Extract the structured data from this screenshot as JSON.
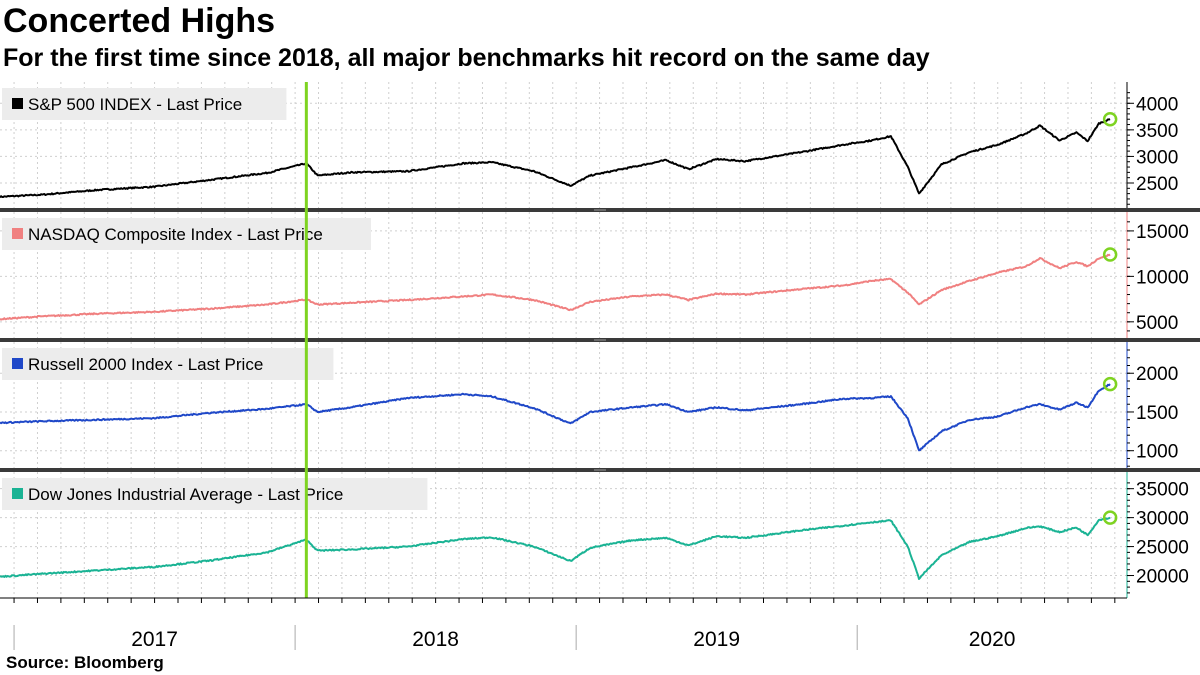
{
  "title": "Concerted Highs",
  "subtitle": "For the first time since 2018, all major benchmarks hit record on the same day",
  "source": "Source: Bloomberg",
  "chart_data": {
    "type": "line",
    "x_range": [
      2016.95,
      2020.96
    ],
    "x_tick_labels": [
      "2017",
      "2018",
      "2019",
      "2020"
    ],
    "highlight_line_x": 2018.04,
    "highlight_color": "#7ed321",
    "series": [
      {
        "name": "S&P 500 INDEX - Last Price",
        "color": "#000000",
        "ylim": [
          2180,
          4250
        ],
        "yticks": [
          2500,
          3000,
          3500,
          4000
        ],
        "x": [
          2016.95,
          2017.1,
          2017.3,
          2017.5,
          2017.7,
          2017.9,
          2018.04,
          2018.08,
          2018.2,
          2018.4,
          2018.6,
          2018.7,
          2018.85,
          2018.98,
          2019.05,
          2019.2,
          2019.32,
          2019.4,
          2019.5,
          2019.6,
          2019.8,
          2019.95,
          2020.05,
          2020.12,
          2020.18,
          2020.22,
          2020.3,
          2020.4,
          2020.5,
          2020.6,
          2020.65,
          2020.72,
          2020.78,
          2020.82,
          2020.86,
          2020.9
        ],
        "y": [
          2240,
          2280,
          2370,
          2430,
          2560,
          2690,
          2870,
          2640,
          2700,
          2720,
          2870,
          2890,
          2720,
          2450,
          2640,
          2800,
          2930,
          2760,
          2950,
          2910,
          3080,
          3220,
          3300,
          3380,
          2800,
          2300,
          2850,
          3080,
          3220,
          3430,
          3580,
          3300,
          3450,
          3290,
          3620,
          3700
        ]
      },
      {
        "name": "NASDAQ Composite Index - Last Price",
        "color": "#f08080",
        "ylim": [
          4100,
          16200
        ],
        "yticks": [
          5000,
          10000,
          15000
        ],
        "x": [
          2016.95,
          2017.1,
          2017.3,
          2017.5,
          2017.7,
          2017.9,
          2018.04,
          2018.08,
          2018.2,
          2018.4,
          2018.6,
          2018.7,
          2018.85,
          2018.98,
          2019.05,
          2019.2,
          2019.32,
          2019.4,
          2019.5,
          2019.6,
          2019.8,
          2019.95,
          2020.05,
          2020.12,
          2020.18,
          2020.22,
          2020.3,
          2020.4,
          2020.5,
          2020.6,
          2020.65,
          2020.72,
          2020.78,
          2020.82,
          2020.86,
          2020.9
        ],
        "y": [
          5300,
          5600,
          5900,
          6100,
          6450,
          6900,
          7450,
          6900,
          7100,
          7400,
          7800,
          8000,
          7400,
          6300,
          7200,
          7800,
          8000,
          7400,
          8100,
          8000,
          8600,
          9000,
          9500,
          9700,
          8200,
          6900,
          8500,
          9500,
          10400,
          11100,
          12000,
          10900,
          11600,
          11100,
          12000,
          12400
        ]
      },
      {
        "name": "Russell 2000 Index - Last Price",
        "color": "#1f48c8",
        "ylim": [
          880,
          2300
        ],
        "yticks": [
          1000,
          1500,
          2000
        ],
        "x": [
          2016.95,
          2017.1,
          2017.3,
          2017.5,
          2017.7,
          2017.9,
          2018.04,
          2018.08,
          2018.2,
          2018.4,
          2018.6,
          2018.7,
          2018.85,
          2018.98,
          2019.05,
          2019.2,
          2019.32,
          2019.4,
          2019.5,
          2019.6,
          2019.8,
          2019.95,
          2020.05,
          2020.12,
          2020.18,
          2020.22,
          2020.3,
          2020.4,
          2020.5,
          2020.6,
          2020.65,
          2020.72,
          2020.78,
          2020.82,
          2020.86,
          2020.9
        ],
        "y": [
          1360,
          1380,
          1400,
          1420,
          1490,
          1540,
          1600,
          1500,
          1560,
          1680,
          1730,
          1700,
          1550,
          1350,
          1500,
          1560,
          1600,
          1500,
          1560,
          1520,
          1600,
          1670,
          1680,
          1700,
          1420,
          1000,
          1250,
          1400,
          1440,
          1560,
          1600,
          1530,
          1620,
          1560,
          1780,
          1860
        ]
      },
      {
        "name": "Dow Jones Industrial Average - Last Price",
        "color": "#1ab394",
        "ylim": [
          17500,
          36500
        ],
        "yticks": [
          20000,
          25000,
          30000,
          35000
        ],
        "x": [
          2016.95,
          2017.1,
          2017.3,
          2017.5,
          2017.7,
          2017.9,
          2018.04,
          2018.08,
          2018.2,
          2018.4,
          2018.6,
          2018.7,
          2018.85,
          2018.98,
          2019.05,
          2019.2,
          2019.32,
          2019.4,
          2019.5,
          2019.6,
          2019.8,
          2019.95,
          2020.05,
          2020.12,
          2020.18,
          2020.22,
          2020.3,
          2020.4,
          2020.5,
          2020.6,
          2020.65,
          2020.72,
          2020.78,
          2020.82,
          2020.86,
          2020.9
        ],
        "y": [
          19800,
          20300,
          20900,
          21500,
          22600,
          24000,
          26200,
          24300,
          24500,
          25000,
          26300,
          26600,
          25000,
          22500,
          24800,
          26100,
          26500,
          25200,
          26800,
          26500,
          27800,
          28600,
          29200,
          29500,
          25000,
          19500,
          23500,
          25800,
          26800,
          28200,
          28500,
          27500,
          28300,
          27000,
          29600,
          30000
        ]
      }
    ]
  }
}
